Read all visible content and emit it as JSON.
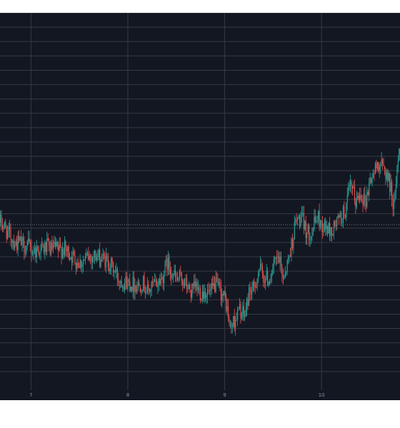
{
  "colors": {
    "background": "#131722",
    "grid": "#363a45",
    "up": "#26a69a",
    "down": "#ef5350",
    "price_line": "#787b86",
    "tick_text": "#8a8f9c"
  },
  "chart_data": {
    "type": "candlestick",
    "title": "",
    "xlabel": "",
    "ylabel": "",
    "x_tick_labels": [
      "7",
      "8",
      "9",
      "10"
    ],
    "x_ticks": [
      7,
      8,
      9,
      10
    ],
    "xlim": [
      6.68,
      10.81
    ],
    "ylim": [
      0,
      26
    ],
    "horizontal_gridlines": 26,
    "grid": true,
    "last_price_line": true,
    "series": [
      {
        "values": [
          [
            6.68,
            11.4
          ],
          [
            6.72,
            11.1
          ],
          [
            6.76,
            10.6
          ],
          [
            6.8,
            10.3
          ],
          [
            6.84,
            9.9
          ],
          [
            6.88,
            10.0
          ],
          [
            6.92,
            9.7
          ],
          [
            6.96,
            9.8
          ],
          [
            7.0,
            9.5
          ],
          [
            7.04,
            9.4
          ],
          [
            7.08,
            9.6
          ],
          [
            7.12,
            9.5
          ],
          [
            7.16,
            9.7
          ],
          [
            7.2,
            9.5
          ],
          [
            7.24,
            9.6
          ],
          [
            7.28,
            9.4
          ],
          [
            7.32,
            9.6
          ],
          [
            7.36,
            9.4
          ],
          [
            7.4,
            9.2
          ],
          [
            7.45,
            8.8
          ],
          [
            7.5,
            8.6
          ],
          [
            7.55,
            8.8
          ],
          [
            7.6,
            9.0
          ],
          [
            7.65,
            9.1
          ],
          [
            7.7,
            8.9
          ],
          [
            7.75,
            8.8
          ],
          [
            7.8,
            8.6
          ],
          [
            7.85,
            8.1
          ],
          [
            7.9,
            7.5
          ],
          [
            7.95,
            7.3
          ],
          [
            8.0,
            7.2
          ],
          [
            8.05,
            7.1
          ],
          [
            8.1,
            7.0
          ],
          [
            8.15,
            7.2
          ],
          [
            8.2,
            6.6
          ],
          [
            8.25,
            6.9
          ],
          [
            8.3,
            7.2
          ],
          [
            8.35,
            7.5
          ],
          [
            8.4,
            8.6
          ],
          [
            8.45,
            8.0
          ],
          [
            8.5,
            7.3
          ],
          [
            8.55,
            7.5
          ],
          [
            8.6,
            7.0
          ],
          [
            8.65,
            6.5
          ],
          [
            8.7,
            6.9
          ],
          [
            8.75,
            6.5
          ],
          [
            8.8,
            6.6
          ],
          [
            8.85,
            6.4
          ],
          [
            8.9,
            7.1
          ],
          [
            8.95,
            6.6
          ],
          [
            9.0,
            6.0
          ],
          [
            9.02,
            5.4
          ],
          [
            9.05,
            4.0
          ],
          [
            9.1,
            4.6
          ],
          [
            9.15,
            5.3
          ],
          [
            9.2,
            4.8
          ],
          [
            9.25,
            6.6
          ],
          [
            9.3,
            6.7
          ],
          [
            9.35,
            8.2
          ],
          [
            9.4,
            7.6
          ],
          [
            9.45,
            7.4
          ],
          [
            9.5,
            8.3
          ],
          [
            9.55,
            8.9
          ],
          [
            9.6,
            7.6
          ],
          [
            9.65,
            8.7
          ],
          [
            9.7,
            10.3
          ],
          [
            9.72,
            11.2
          ],
          [
            9.75,
            11.6
          ],
          [
            9.8,
            11.5
          ],
          [
            9.85,
            10.6
          ],
          [
            9.9,
            10.9
          ],
          [
            9.95,
            11.8
          ],
          [
            10.0,
            11.2
          ],
          [
            10.05,
            11.0
          ],
          [
            10.1,
            10.7
          ],
          [
            10.15,
            11.4
          ],
          [
            10.2,
            11.7
          ],
          [
            10.25,
            12.4
          ],
          [
            10.28,
            13.6
          ],
          [
            10.3,
            13.9
          ],
          [
            10.35,
            12.8
          ],
          [
            10.4,
            13.5
          ],
          [
            10.45,
            12.8
          ],
          [
            10.5,
            14.4
          ],
          [
            10.55,
            15.0
          ],
          [
            10.58,
            15.6
          ],
          [
            10.6,
            15.4
          ],
          [
            10.65,
            15.1
          ],
          [
            10.7,
            14.1
          ],
          [
            10.73,
            13.0
          ],
          [
            10.75,
            12.5
          ],
          [
            10.77,
            15.1
          ],
          [
            10.79,
            16.0
          ],
          [
            10.81,
            16.4
          ]
        ]
      }
    ]
  }
}
